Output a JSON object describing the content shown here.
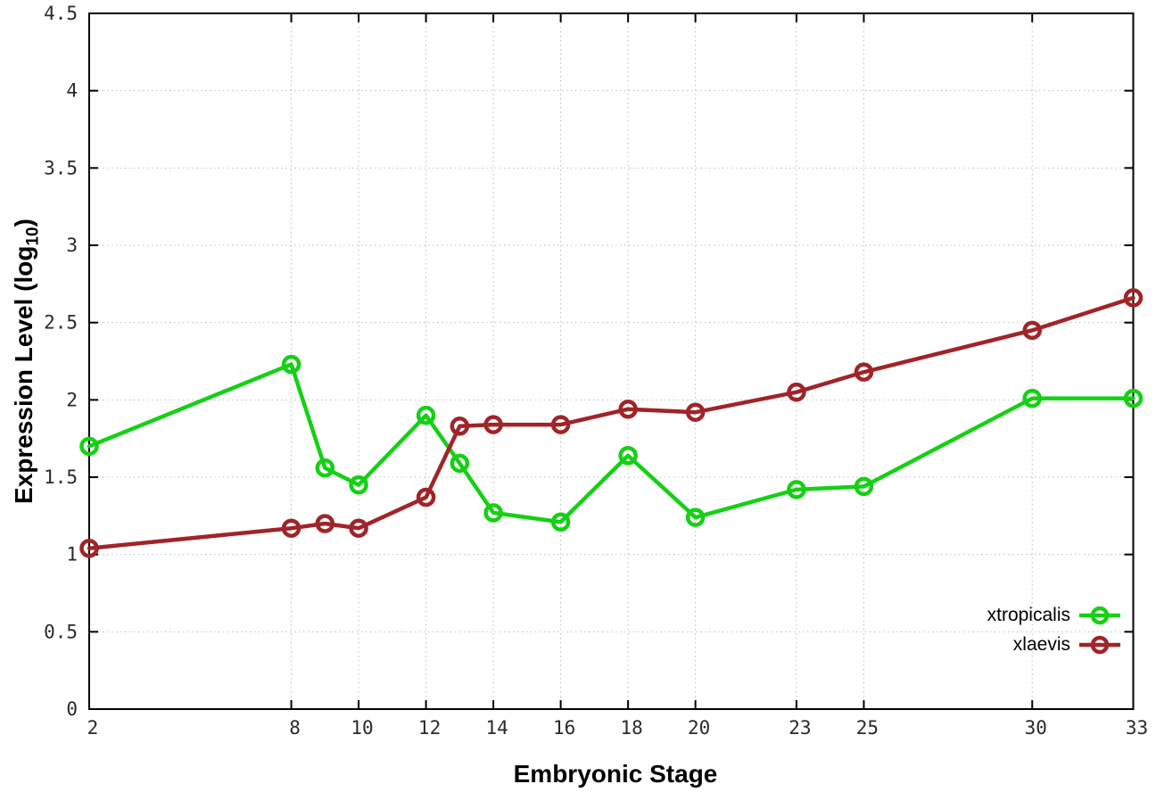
{
  "chart_data": {
    "type": "line",
    "title": "",
    "xlabel": "Embryonic Stage",
    "ylabel": {
      "pre": "Expression Level (log",
      "sub": "10",
      "post": ")"
    },
    "xlim": [
      2,
      33
    ],
    "ylim": [
      0,
      4.5
    ],
    "x_ticks": [
      2,
      8,
      10,
      12,
      14,
      16,
      18,
      20,
      23,
      25,
      30,
      33
    ],
    "y_ticks": [
      0,
      0.5,
      1,
      1.5,
      2,
      2.5,
      3,
      3.5,
      4,
      4.5
    ],
    "grid": true,
    "legend_position": "bottom-right",
    "x": [
      2,
      8,
      9,
      10,
      12,
      13,
      14,
      16,
      18,
      20,
      23,
      25,
      30,
      33
    ],
    "series": [
      {
        "name": "xtropicalis",
        "color": "#15d015",
        "values": [
          1.7,
          2.23,
          1.56,
          1.45,
          1.9,
          1.59,
          1.27,
          1.21,
          1.64,
          1.24,
          1.42,
          1.44,
          2.01,
          2.01
        ]
      },
      {
        "name": "xlaevis",
        "color": "#a02428",
        "values": [
          1.04,
          1.17,
          1.2,
          1.17,
          1.37,
          1.83,
          1.84,
          1.84,
          1.94,
          1.92,
          2.05,
          2.18,
          2.45,
          2.66
        ]
      }
    ],
    "colors": {
      "grid": "#bcbcbc",
      "axis": "#000000",
      "tick_label": "#2a2a2a"
    }
  },
  "legend": {
    "items": [
      {
        "label": "xtropicalis"
      },
      {
        "label": "xlaevis"
      }
    ]
  }
}
